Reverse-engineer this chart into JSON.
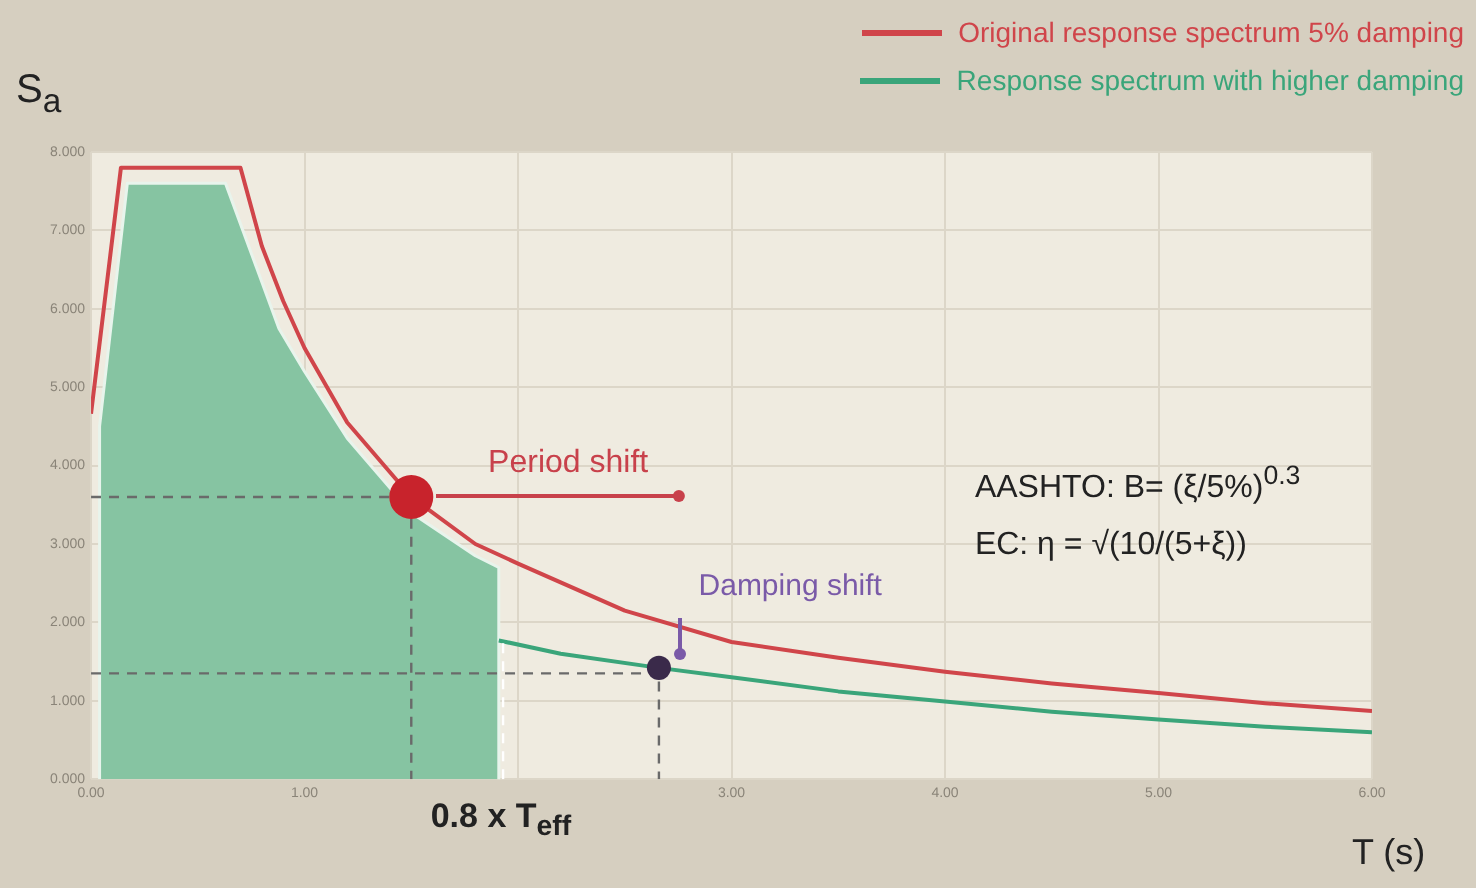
{
  "chart_data": {
    "type": "line",
    "xlabel": "T (s)",
    "ylabel": "S$_{a}$",
    "xlim": [
      0,
      6
    ],
    "ylim": [
      0,
      8
    ],
    "xticks": [
      {
        "value": 0,
        "label": "0.00"
      },
      {
        "value": 1,
        "label": "1.00"
      },
      {
        "value": 2,
        "label": null
      },
      {
        "value": 3,
        "label": "3.00"
      },
      {
        "value": 4,
        "label": "4.00"
      },
      {
        "value": 5,
        "label": "5.00"
      },
      {
        "value": 6,
        "label": "6.00"
      }
    ],
    "yticks": [
      {
        "value": 0,
        "label": "0.000"
      },
      {
        "value": 1,
        "label": "1.000"
      },
      {
        "value": 2,
        "label": "2.000"
      },
      {
        "value": 3,
        "label": "3.000"
      },
      {
        "value": 4,
        "label": "4.000"
      },
      {
        "value": 5,
        "label": "5.000"
      },
      {
        "value": 6,
        "label": "6.000"
      },
      {
        "value": 7,
        "label": "7.000"
      },
      {
        "value": 8,
        "label": "8.000"
      }
    ],
    "grid": true,
    "legend": "top right",
    "series": [
      {
        "type": "area",
        "color": "#86c4a2",
        "x": [
          0.04,
          0.04,
          0.17,
          0.63,
          0.88,
          1.0,
          1.2,
          1.5,
          1.8,
          1.91,
          1.91
        ],
        "values": [
          0,
          4.5,
          7.6,
          7.6,
          5.75,
          5.2,
          4.35,
          3.4,
          2.85,
          2.7,
          0
        ]
      },
      {
        "name": "Original response spectrum 5% damping",
        "color": "#d0454a",
        "x": [
          0,
          0.14,
          0.7,
          0.8,
          0.9,
          1.0,
          1.2,
          1.5,
          1.8,
          2.0,
          2.5,
          3,
          3.5,
          4,
          4.5,
          5,
          5.5,
          6
        ],
        "values": [
          4.66,
          7.8,
          7.8,
          6.8,
          6.1,
          5.5,
          4.55,
          3.6,
          3.0,
          2.75,
          2.15,
          1.75,
          1.55,
          1.37,
          1.22,
          1.1,
          0.97,
          0.87
        ]
      },
      {
        "name": "Response spectrum with higher damping",
        "color": "#3aa57a",
        "x": [
          1.91,
          2.2,
          2.66,
          3,
          3.5,
          4,
          4.5,
          5,
          5.5,
          6
        ],
        "values": [
          1.77,
          1.6,
          1.42,
          1.3,
          1.12,
          0.99,
          0.86,
          0.76,
          0.67,
          0.6
        ]
      },
      {
        "type": "line",
        "color": "#6a6a6a",
        "line_style": "dashed",
        "x": [
          0,
          1.5,
          1.5
        ],
        "values": [
          3.6,
          3.6,
          0
        ]
      },
      {
        "type": "line",
        "color": "#6a6a6a",
        "line_style": "dashed",
        "x": [
          0,
          2.66,
          2.66
        ],
        "values": [
          1.35,
          1.35,
          0
        ]
      },
      {
        "type": "line",
        "color": "#ffffff",
        "line_style": "dashed",
        "x": [
          1.93,
          1.93
        ],
        "values": [
          0,
          1.77
        ]
      },
      {
        "type": "bubble",
        "x": [
          1.5,
          2.66
        ],
        "values": [
          3.6,
          1.42
        ],
        "sizes": [
          1,
          0.3
        ],
        "colors": [
          "#c8232c",
          "#3a2a4a"
        ]
      }
    ],
    "annotations": [
      {
        "text": "Period shift",
        "x": 2.75,
        "y": 3.6
      },
      {
        "text": "Damping shift",
        "x": 2.76,
        "y": 1.6
      },
      "0.8 x T$_{eff}$",
      "AASHTO: B= (ξ/5%)$^{0.3}$",
      "EC: η = √(10/(5+ξ))"
    ]
  }
}
